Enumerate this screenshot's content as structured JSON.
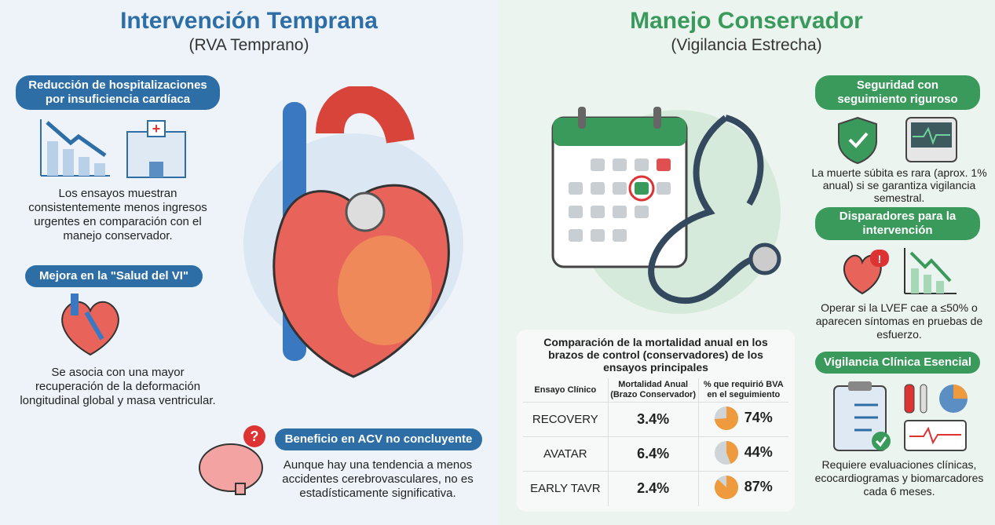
{
  "left": {
    "title": "Intervención Temprana",
    "subtitle": "(RVA Temprano)",
    "sections": [
      {
        "label": "Reducción de hospitalizaciones por insuficiencia cardíaca",
        "text": "Los ensayos muestran consistentemente menos ingresos urgentes en comparación con el manejo conservador."
      },
      {
        "label": "Mejora en la \"Salud del VI\"",
        "text": "Se asocia con una mayor recuperación de la deformación longitudinal global y masa ventricular."
      },
      {
        "label": "Beneficio en ACV no concluyente",
        "text": "Aunque hay una tendencia a menos accidentes cerebrovasculares, no es estadísticamente significativa."
      }
    ],
    "color": "#2e6ea6"
  },
  "right": {
    "title": "Manejo Conservador",
    "subtitle": "(Vigilancia Estrecha)",
    "sections": [
      {
        "label": "Seguridad con seguimiento riguroso",
        "text": "La muerte súbita es rara (aprox. 1% anual) si se garantiza vigilancia semestral."
      },
      {
        "label": "Disparadores para la intervención",
        "text": "Operar si la LVEF cae a ≤50% o aparecen síntomas en pruebas de esfuerzo."
      },
      {
        "label": "Vigilancia Clínica Esencial",
        "text": "Requiere evaluaciones clínicas, ecocardiogramas y biomarcadores cada 6 meses."
      }
    ],
    "color": "#3a9a5c"
  },
  "table": {
    "title": "Comparación de la mortalidad anual en los brazos de control (conservadores) de los ensayos principales",
    "headers": [
      "Ensayo Clínico",
      "Mortalidad Anual (Brazo Conservador)",
      "% que requirió BVA en el seguimiento"
    ],
    "rows": [
      {
        "trial": "RECOVERY",
        "mortality": "3.4%",
        "bva": "74%",
        "bva_value": 74
      },
      {
        "trial": "AVATAR",
        "mortality": "6.4%",
        "bva": "44%",
        "bva_value": 44
      },
      {
        "trial": "EARLY TAVR",
        "mortality": "2.4%",
        "bva": "87%",
        "bva_value": 87
      }
    ],
    "pie_color": "#ef9a3c"
  }
}
